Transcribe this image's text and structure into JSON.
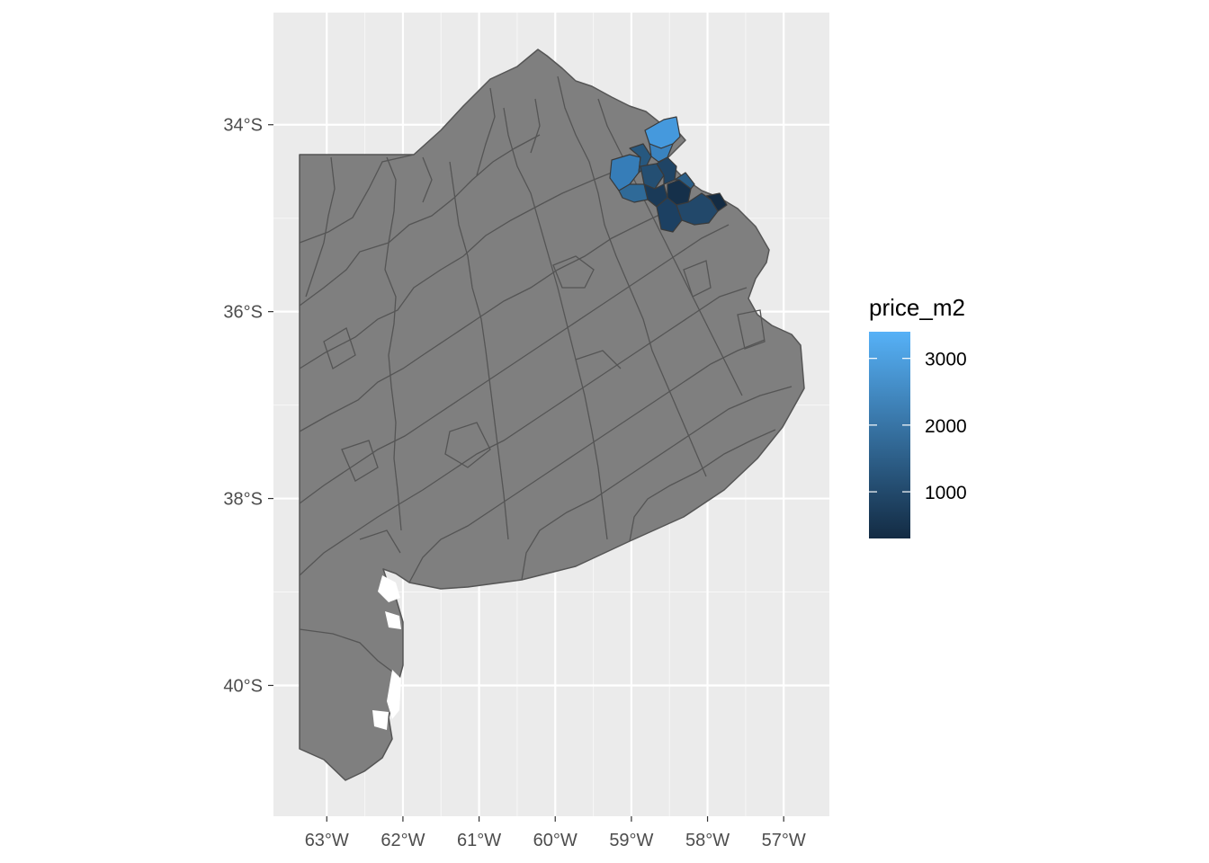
{
  "chart_data": {
    "type": "choropleth",
    "title": "",
    "xlabel": "",
    "ylabel": "",
    "x_ticks": [
      {
        "value": -63,
        "label": "63°W"
      },
      {
        "value": -62,
        "label": "62°W"
      },
      {
        "value": -61,
        "label": "61°W"
      },
      {
        "value": -60,
        "label": "60°W"
      },
      {
        "value": -59,
        "label": "59°W"
      },
      {
        "value": -58,
        "label": "58°W"
      },
      {
        "value": -57,
        "label": "57°W"
      }
    ],
    "y_ticks": [
      {
        "value": -34,
        "label": "34°S"
      },
      {
        "value": -36,
        "label": "36°S"
      },
      {
        "value": -38,
        "label": "38°S"
      },
      {
        "value": -40,
        "label": "40°S"
      }
    ],
    "xlim": [
      -63.7,
      -56.4
    ],
    "ylim": [
      -41.4,
      -32.8
    ],
    "grid": true,
    "fill_variable": "price_m2",
    "missing_fill": "#7f7f7f",
    "legend": {
      "title": "price_m2",
      "placement": "right",
      "range": [
        300,
        3400
      ],
      "ticks": [
        {
          "value": 1000,
          "label": "1000"
        },
        {
          "value": 2000,
          "label": "2000"
        },
        {
          "value": 3000,
          "label": "3000"
        }
      ],
      "low_color": "#132b43",
      "high_color": "#56b1f7"
    },
    "colored_regions_price_m2": [
      3400,
      2900,
      2700,
      1400,
      1200,
      900,
      1100,
      1000,
      700,
      500,
      600,
      800,
      1300
    ]
  }
}
